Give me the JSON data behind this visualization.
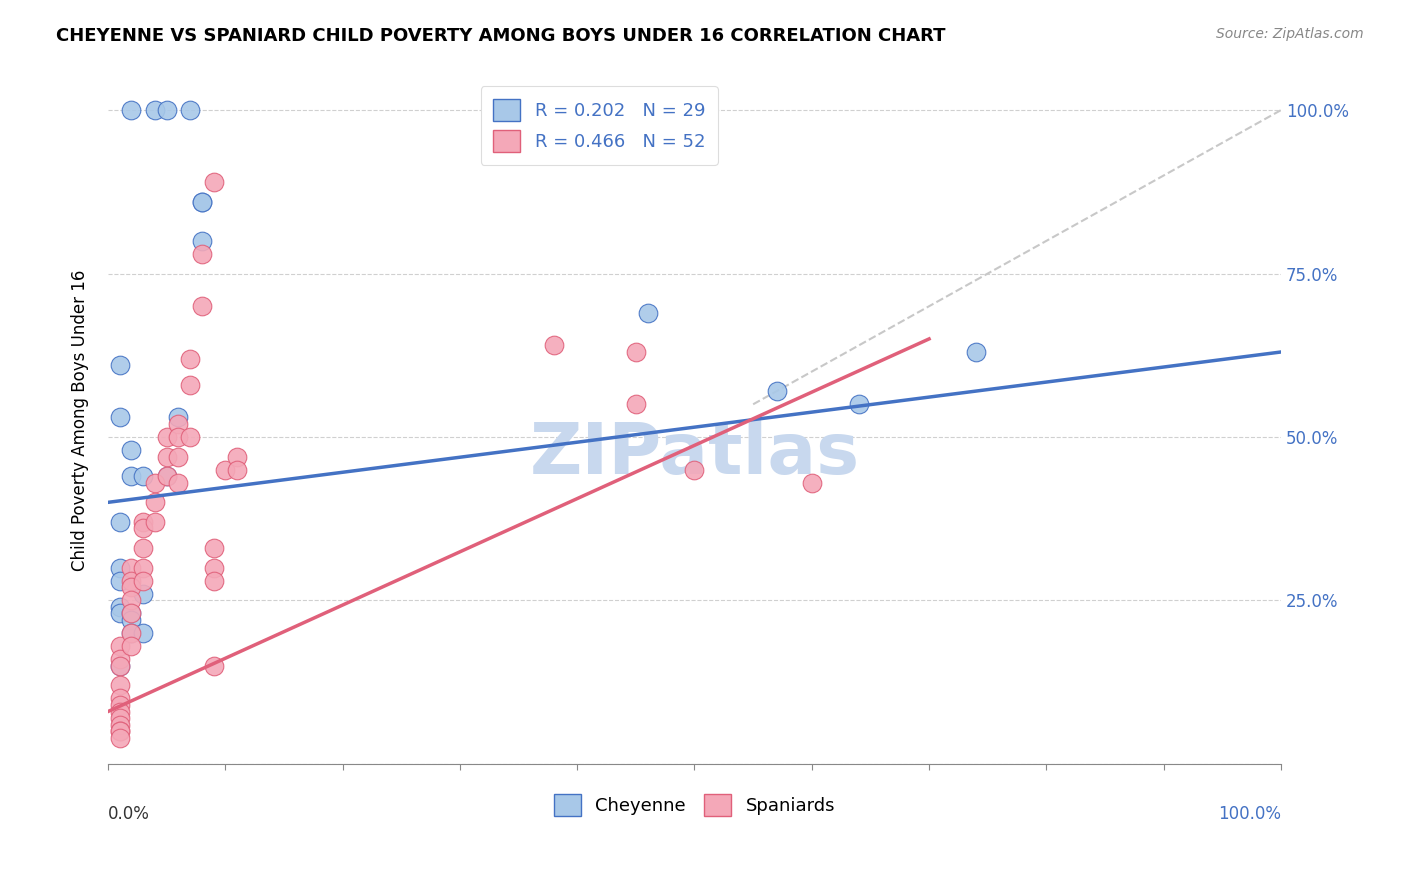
{
  "title": "CHEYENNE VS SPANIARD CHILD POVERTY AMONG BOYS UNDER 16 CORRELATION CHART",
  "source": "Source: ZipAtlas.com",
  "ylabel": "Child Poverty Among Boys Under 16",
  "cheyenne_color": "#a8c8e8",
  "spaniard_color": "#f4a8b8",
  "line_cheyenne": "#4472c4",
  "line_spaniard": "#e0607a",
  "diagonal_color": "#c8c8c8",
  "background_color": "#ffffff",
  "grid_color": "#d0d0d0",
  "legend_cheyenne_r": "R = 0.202",
  "legend_cheyenne_n": "N = 29",
  "legend_spaniard_r": "R = 0.466",
  "legend_spaniard_n": "N = 52",
  "cheyenne_x": [
    2,
    4,
    5,
    7,
    1,
    1,
    2,
    2,
    3,
    5,
    1,
    1,
    1,
    1,
    1,
    2,
    2,
    2,
    3,
    8,
    8,
    8,
    6,
    46,
    57,
    64,
    74,
    1,
    3
  ],
  "cheyenne_y": [
    100,
    100,
    100,
    100,
    61,
    53,
    48,
    44,
    44,
    44,
    37,
    30,
    28,
    24,
    23,
    23,
    22,
    20,
    20,
    86,
    86,
    80,
    53,
    69,
    57,
    55,
    63,
    15,
    26
  ],
  "spaniard_x": [
    1,
    1,
    1,
    1,
    1,
    1,
    1,
    1,
    1,
    1,
    1,
    1,
    2,
    2,
    2,
    2,
    2,
    2,
    2,
    3,
    3,
    3,
    3,
    3,
    4,
    4,
    4,
    5,
    5,
    5,
    6,
    6,
    6,
    6,
    7,
    7,
    7,
    8,
    8,
    9,
    9,
    9,
    10,
    11,
    11,
    38,
    45,
    45,
    50,
    60,
    9,
    9
  ],
  "spaniard_y": [
    18,
    16,
    15,
    12,
    10,
    9,
    8,
    7,
    6,
    5,
    5,
    4,
    30,
    28,
    27,
    25,
    23,
    20,
    18,
    37,
    36,
    33,
    30,
    28,
    43,
    40,
    37,
    50,
    47,
    44,
    52,
    50,
    47,
    43,
    62,
    58,
    50,
    78,
    70,
    33,
    30,
    28,
    45,
    47,
    45,
    64,
    63,
    55,
    45,
    43,
    89,
    15
  ],
  "cheyenne_line": [
    0,
    100,
    40,
    63
  ],
  "spaniard_line": [
    0,
    70,
    8,
    65
  ],
  "diagonal_line": [
    55,
    100,
    55,
    100
  ],
  "watermark": "ZIPatlas",
  "watermark_color": "#c8d8ee",
  "watermark_fontsize": 52
}
